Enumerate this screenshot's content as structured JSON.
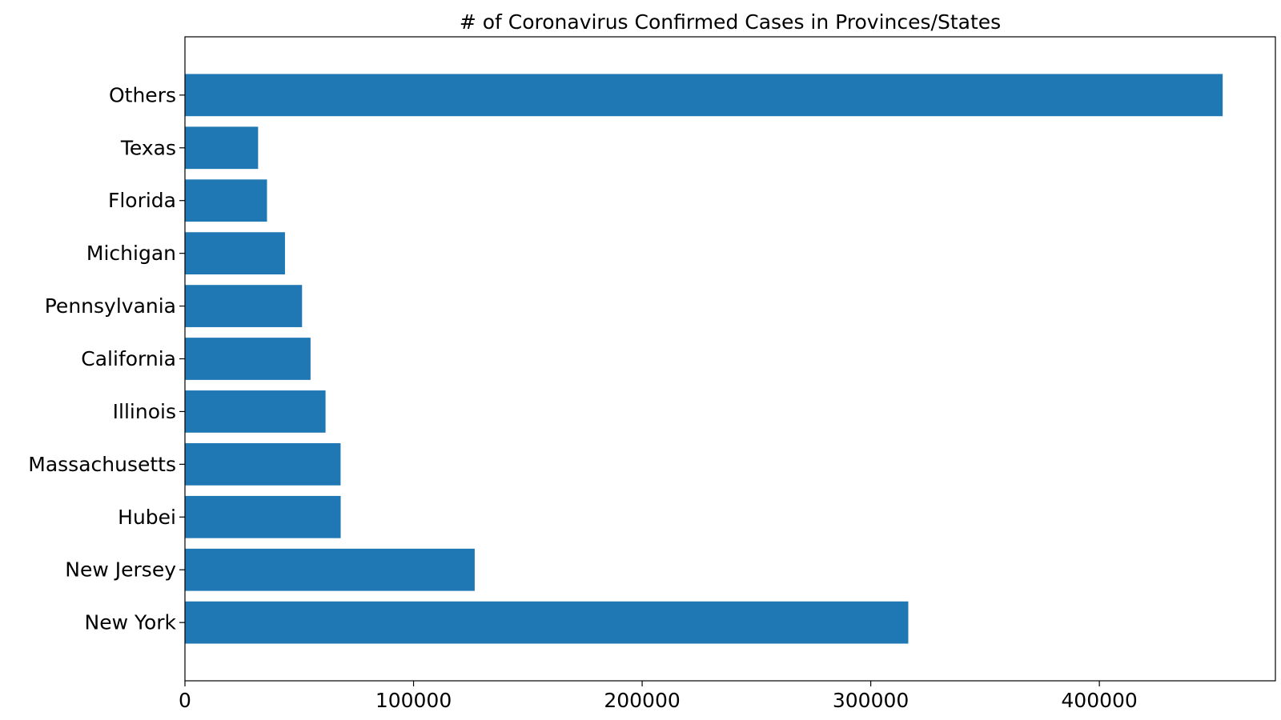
{
  "chart_data": {
    "type": "bar",
    "orientation": "horizontal",
    "title": "# of Coronavirus Confirmed Cases in Provinces/States",
    "xlabel": "",
    "ylabel": "",
    "categories": [
      "New York",
      "New Jersey",
      "Hubei",
      "Massachusetts",
      "Illinois",
      "California",
      "Pennsylvania",
      "Michigan",
      "Florida",
      "Texas",
      "Others"
    ],
    "values": [
      316415,
      126744,
      68128,
      68087,
      61499,
      54937,
      51225,
      43754,
      35894,
      31998,
      453937
    ],
    "xlim": [
      0,
      477000
    ],
    "xticks": [
      0,
      100000,
      200000,
      300000,
      400000
    ],
    "xtick_labels": [
      "0",
      "100000",
      "200000",
      "300000",
      "400000"
    ],
    "grid": false,
    "legend": "none",
    "colors": {
      "bar": "#1f77b4",
      "axes": "#000000",
      "background": "#ffffff"
    }
  }
}
